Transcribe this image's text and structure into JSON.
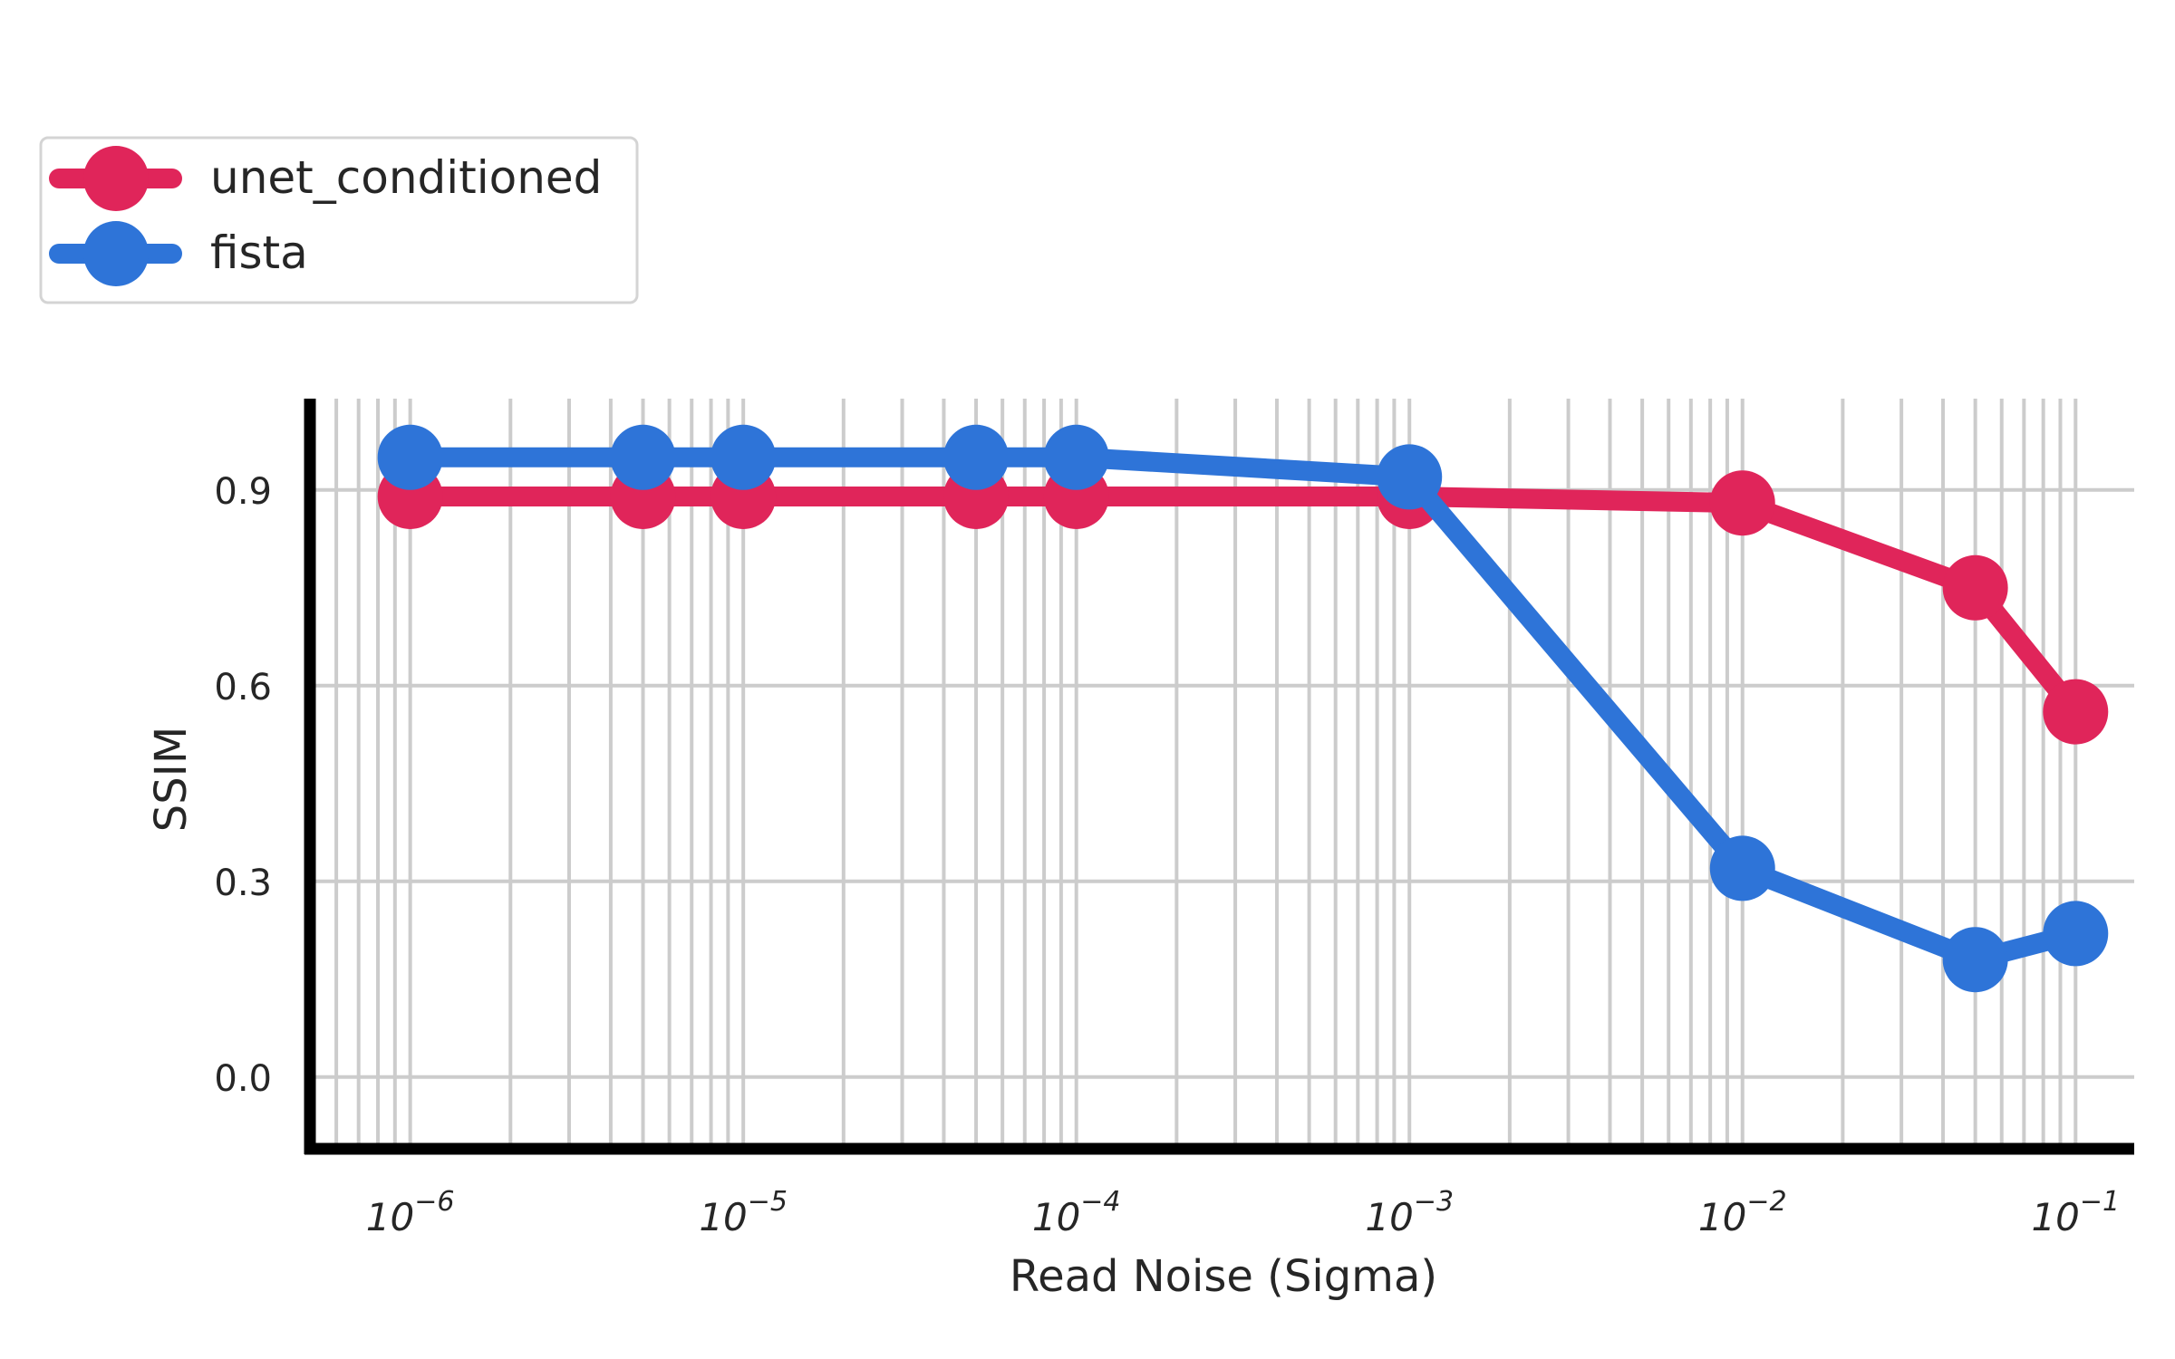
{
  "chart_data": {
    "type": "line",
    "title": "",
    "xlabel": "Read Noise (Sigma)",
    "ylabel": "SSIM",
    "x_scale": "log",
    "xlim": [
      5e-07,
      0.15
    ],
    "ylim": [
      -0.11,
      1.04
    ],
    "grid": true,
    "legend_position": "top-left, outside plot",
    "x_ticks": [
      1e-06,
      1e-05,
      0.0001,
      0.001,
      0.01,
      0.1
    ],
    "x_tick_labels": [
      {
        "base": "10",
        "exp": "−6"
      },
      {
        "base": "10",
        "exp": "−5"
      },
      {
        "base": "10",
        "exp": "−4"
      },
      {
        "base": "10",
        "exp": "−3"
      },
      {
        "base": "10",
        "exp": "−2"
      },
      {
        "base": "10",
        "exp": "−1"
      }
    ],
    "y_ticks": [
      0.0,
      0.3,
      0.6,
      0.9
    ],
    "y_tick_labels": [
      "0.0",
      "0.3",
      "0.6",
      "0.9"
    ],
    "x": [
      1e-06,
      5e-06,
      1e-05,
      5e-05,
      0.0001,
      0.001,
      0.01,
      0.05,
      0.1
    ],
    "series": [
      {
        "name": "unet_conditioned",
        "color": "#e0255a",
        "values": [
          0.89,
          0.89,
          0.89,
          0.89,
          0.89,
          0.89,
          0.88,
          0.75,
          0.56
        ]
      },
      {
        "name": "fista",
        "color": "#2e74d8",
        "values": [
          0.95,
          0.95,
          0.95,
          0.95,
          0.95,
          0.92,
          0.32,
          0.18,
          0.22
        ]
      }
    ]
  }
}
